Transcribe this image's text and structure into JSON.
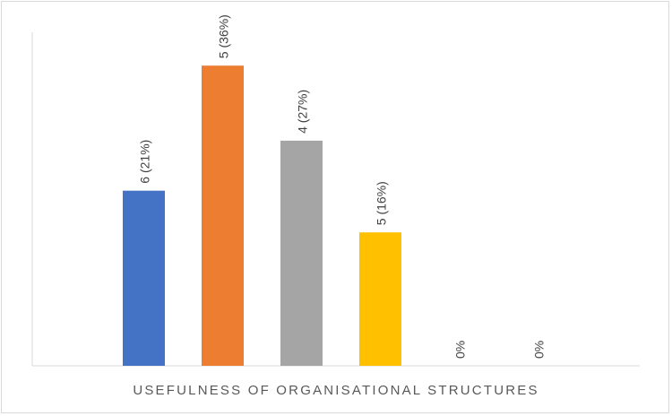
{
  "chart_data": {
    "type": "bar",
    "categories": [
      "",
      "",
      "",
      "",
      "",
      ""
    ],
    "values": [
      21,
      36,
      27,
      16,
      0,
      0
    ],
    "labels": [
      "6 (21%)",
      "5 (36%)",
      "4 (27%)",
      "5 (16%)",
      "0%",
      "0%"
    ],
    "colors": [
      "#4472c4",
      "#ed7d31",
      "#a5a5a5",
      "#ffc000",
      "#5b9bd5",
      "#70ad47"
    ],
    "title": "",
    "xlabel": "USEFULNESS OF ORGANISATIONAL STRUCTURES",
    "ylabel": "",
    "ylim": [
      0,
      40
    ],
    "grid": false,
    "legend": "none"
  }
}
